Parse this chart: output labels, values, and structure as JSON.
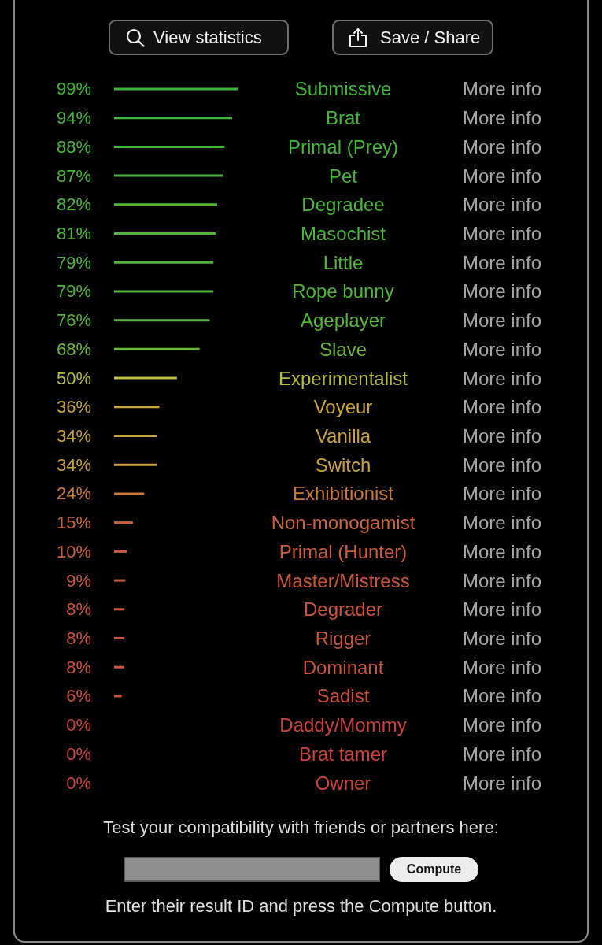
{
  "chart_data": {
    "type": "bar",
    "orientation": "horizontal",
    "categories": [
      "Submissive",
      "Brat",
      "Primal (Prey)",
      "Pet",
      "Degradee",
      "Masochist",
      "Little",
      "Rope bunny",
      "Ageplayer",
      "Slave",
      "Experimentalist",
      "Voyeur",
      "Vanilla",
      "Switch",
      "Exhibitionist",
      "Non-monogamist",
      "Primal (Hunter)",
      "Master/Mistress",
      "Degrader",
      "Rigger",
      "Dominant",
      "Sadist",
      "Daddy/Mommy",
      "Brat tamer",
      "Owner"
    ],
    "values": [
      99,
      94,
      88,
      87,
      82,
      81,
      79,
      79,
      76,
      68,
      50,
      36,
      34,
      34,
      24,
      15,
      10,
      9,
      8,
      8,
      8,
      6,
      0,
      0,
      0
    ],
    "value_labels": [
      "99%",
      "94%",
      "88%",
      "87%",
      "82%",
      "81%",
      "79%",
      "79%",
      "76%",
      "68%",
      "50%",
      "36%",
      "34%",
      "34%",
      "24%",
      "15%",
      "10%",
      "9%",
      "8%",
      "8%",
      "8%",
      "6%",
      "0%",
      "0%",
      "0%"
    ],
    "colors": [
      "#3fb53a",
      "#42b53a",
      "#46b53a",
      "#47b53a",
      "#4cb53a",
      "#4db53a",
      "#51b53a",
      "#51b53a",
      "#56b53a",
      "#6ab73a",
      "#b7bd3a",
      "#c9a43c",
      "#c9a03c",
      "#c9a03c",
      "#c9773c",
      "#c9643c",
      "#c95c3c",
      "#c9583c",
      "#c9543c",
      "#c9543c",
      "#c9543c",
      "#c94e3c",
      "#c9423c",
      "#c9423c",
      "#c9423c"
    ],
    "annotations": [
      "View statistics",
      "Save / Share",
      "More info",
      "More info",
      "More info",
      "More info",
      "More info",
      "More info",
      "More info",
      "More info",
      "More info",
      "More info",
      "More info",
      "More info",
      "More info",
      "More info",
      "More info",
      "More info",
      "More info",
      "More info",
      "More info",
      "More info",
      "More info",
      "More info",
      "More info",
      "More info",
      "More info",
      "Test your compatibility with friends or partners here:",
      "Compute",
      "Enter their result ID and press the Compute button."
    ]
  }
}
